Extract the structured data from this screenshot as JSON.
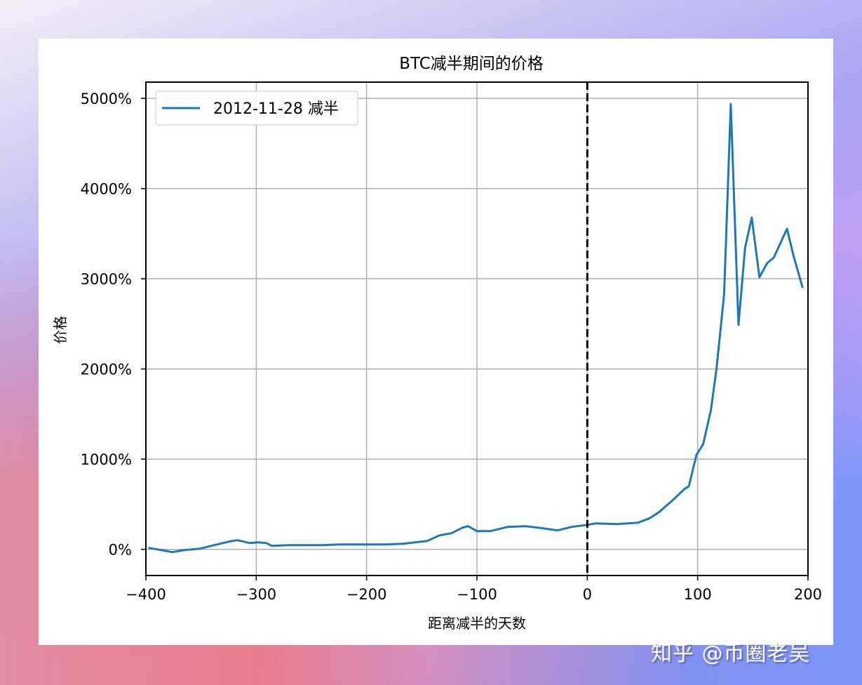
{
  "chart_data": {
    "type": "line",
    "title": "BTC减半期间的价格",
    "xlabel": "距离减半的天数",
    "ylabel": "价格",
    "xlim": [
      -400,
      200
    ],
    "ylim": [
      -290,
      5180
    ],
    "xticks": [
      -400,
      -300,
      -200,
      -100,
      0,
      100,
      200
    ],
    "xtick_labels": [
      "−400",
      "−300",
      "−200",
      "−100",
      "0",
      "100",
      "200"
    ],
    "yticks": [
      0,
      1000,
      2000,
      3000,
      4000,
      5000
    ],
    "ytick_labels": [
      "0%",
      "1000%",
      "2000%",
      "3000%",
      "4000%",
      "5000%"
    ],
    "grid": true,
    "legend_position": "upper left",
    "vertical_line": {
      "x": 0,
      "style": "dashed",
      "color": "#000000"
    },
    "series": [
      {
        "name": "2012-11-28 减半",
        "color": "#1f77b4",
        "x": [
          -397,
          -386,
          -376,
          -365,
          -351,
          -338,
          -322,
          -317,
          -306,
          -298,
          -291,
          -286,
          -271,
          -256,
          -240,
          -225,
          -214,
          -198,
          -183,
          -167,
          -145,
          -134,
          -123,
          -113,
          -108,
          -100,
          -88,
          -72,
          -56,
          -40,
          -27,
          -14,
          0,
          8,
          27,
          46,
          56,
          65,
          78,
          88,
          92,
          99,
          105,
          112,
          117,
          124,
          130,
          137,
          143,
          149,
          156,
          163,
          169,
          181,
          187,
          195
        ],
        "values": [
          15,
          -8,
          -30,
          -8,
          8,
          47,
          93,
          101,
          70,
          78,
          70,
          39,
          47,
          47,
          47,
          54,
          54,
          54,
          54,
          62,
          93,
          155,
          179,
          241,
          257,
          202,
          202,
          249,
          257,
          233,
          210,
          249,
          272,
          288,
          280,
          296,
          342,
          412,
          552,
          669,
          700,
          1050,
          1166,
          1540,
          1991,
          2823,
          4938,
          2488,
          3344,
          3678,
          3017,
          3173,
          3235,
          3554,
          3250,
          2908
        ]
      }
    ]
  },
  "legend": {
    "label": "2012-11-28 减半"
  },
  "watermark": "知乎 @币圈老吴"
}
